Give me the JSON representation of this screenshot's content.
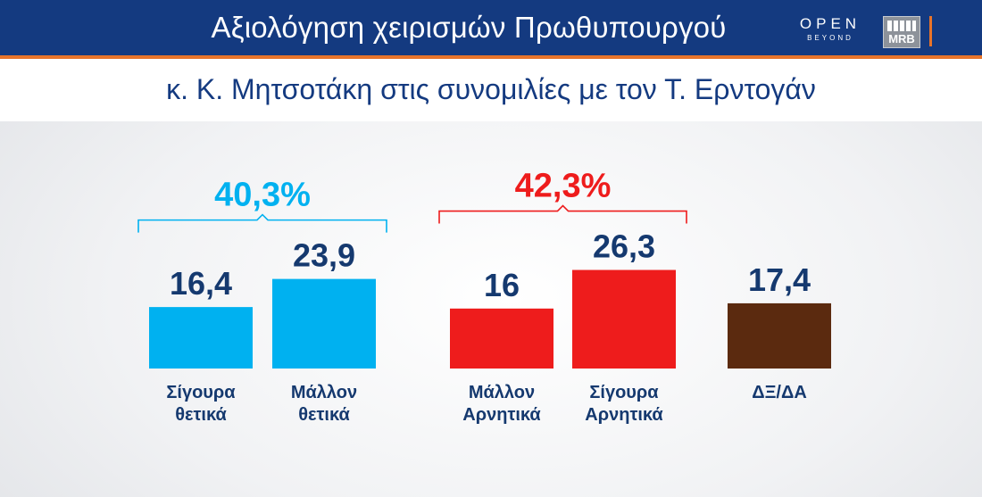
{
  "header": {
    "title": "Αξιολόγηση χειρισμών Πρωθυπουργού",
    "logo_open": "OPEN",
    "logo_open_sub": "BEYOND",
    "logo_mrb": "MRB"
  },
  "subtitle": "κ. Κ. Μητσοτάκη στις συνομιλίες με  τον Τ. Ερντογάν",
  "colors": {
    "blue": "#00b1f0",
    "red": "#ee1c1c",
    "brown": "#5b2a0f",
    "navy": "#143a80",
    "accent": "#e8742a"
  },
  "chart_data": {
    "type": "bar",
    "categories": [
      [
        "Σίγουρα",
        "θετικά"
      ],
      [
        "Μάλλον",
        "θετικά"
      ],
      [
        "Μάλλον",
        "Αρνητικά"
      ],
      [
        "Σίγουρα",
        "Αρνητικά"
      ],
      [
        "ΔΞ/ΔΑ"
      ]
    ],
    "values": [
      16.4,
      23.9,
      16,
      26.3,
      17.4
    ],
    "value_labels": [
      "16,4",
      "23,9",
      "16",
      "26,3",
      "17,4"
    ],
    "bar_colors": [
      "#00b1f0",
      "#00b1f0",
      "#ee1c1c",
      "#ee1c1c",
      "#5b2a0f"
    ],
    "groups": [
      {
        "label": "40,3%",
        "bars": [
          0,
          1
        ],
        "color": "#00b1f0"
      },
      {
        "label": "42,3%",
        "bars": [
          2,
          3
        ],
        "color": "#ee1c1c"
      }
    ]
  }
}
